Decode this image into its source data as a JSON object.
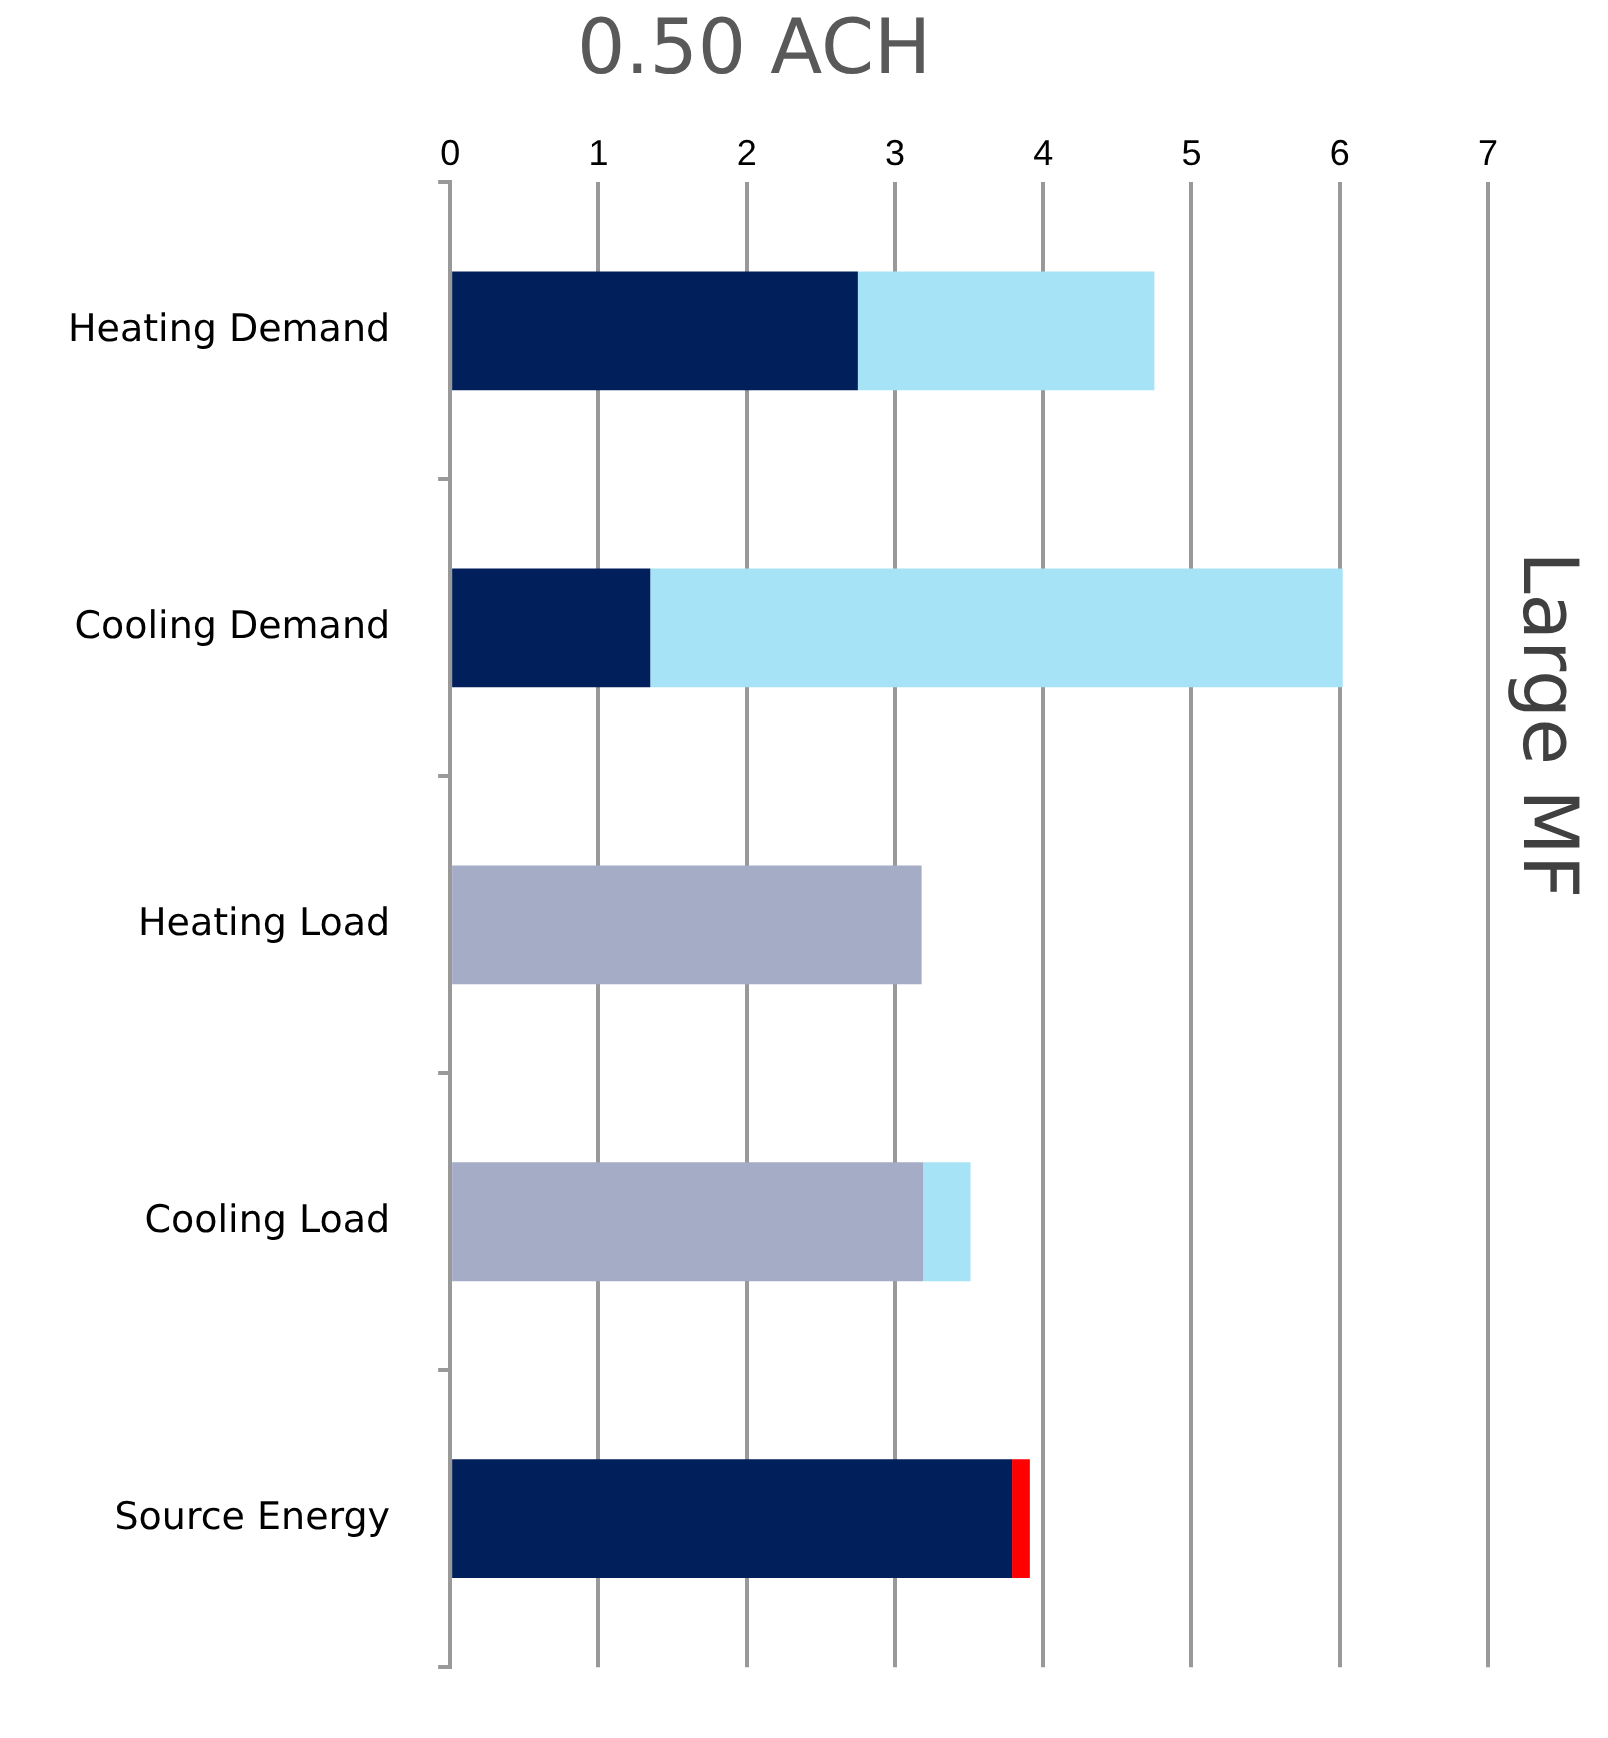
{
  "chart_data": {
    "type": "bar",
    "orientation": "horizontal",
    "stacked": true,
    "title": "0.50 ACH",
    "y2label": "Large MF",
    "categories": [
      "Heating Demand",
      "Cooling Demand",
      "Heating Load",
      "Cooling Load",
      "Source Energy"
    ],
    "series": [
      {
        "color": "#001f5b",
        "values": [
          2.75,
          1.35,
          null,
          null,
          3.79
        ]
      },
      {
        "color": "#a4acc6",
        "values": [
          null,
          null,
          3.18,
          3.19,
          null
        ]
      },
      {
        "color": "#a6e3f7",
        "values": [
          2.0,
          4.67,
          null,
          0.32,
          null
        ]
      },
      {
        "color": "#ff0000",
        "values": [
          null,
          null,
          null,
          null,
          0.12
        ]
      }
    ],
    "xlim": [
      0,
      7
    ],
    "xticks": [
      0,
      1,
      2,
      3,
      4,
      5,
      6,
      7
    ],
    "grid": "x",
    "legend": false
  }
}
